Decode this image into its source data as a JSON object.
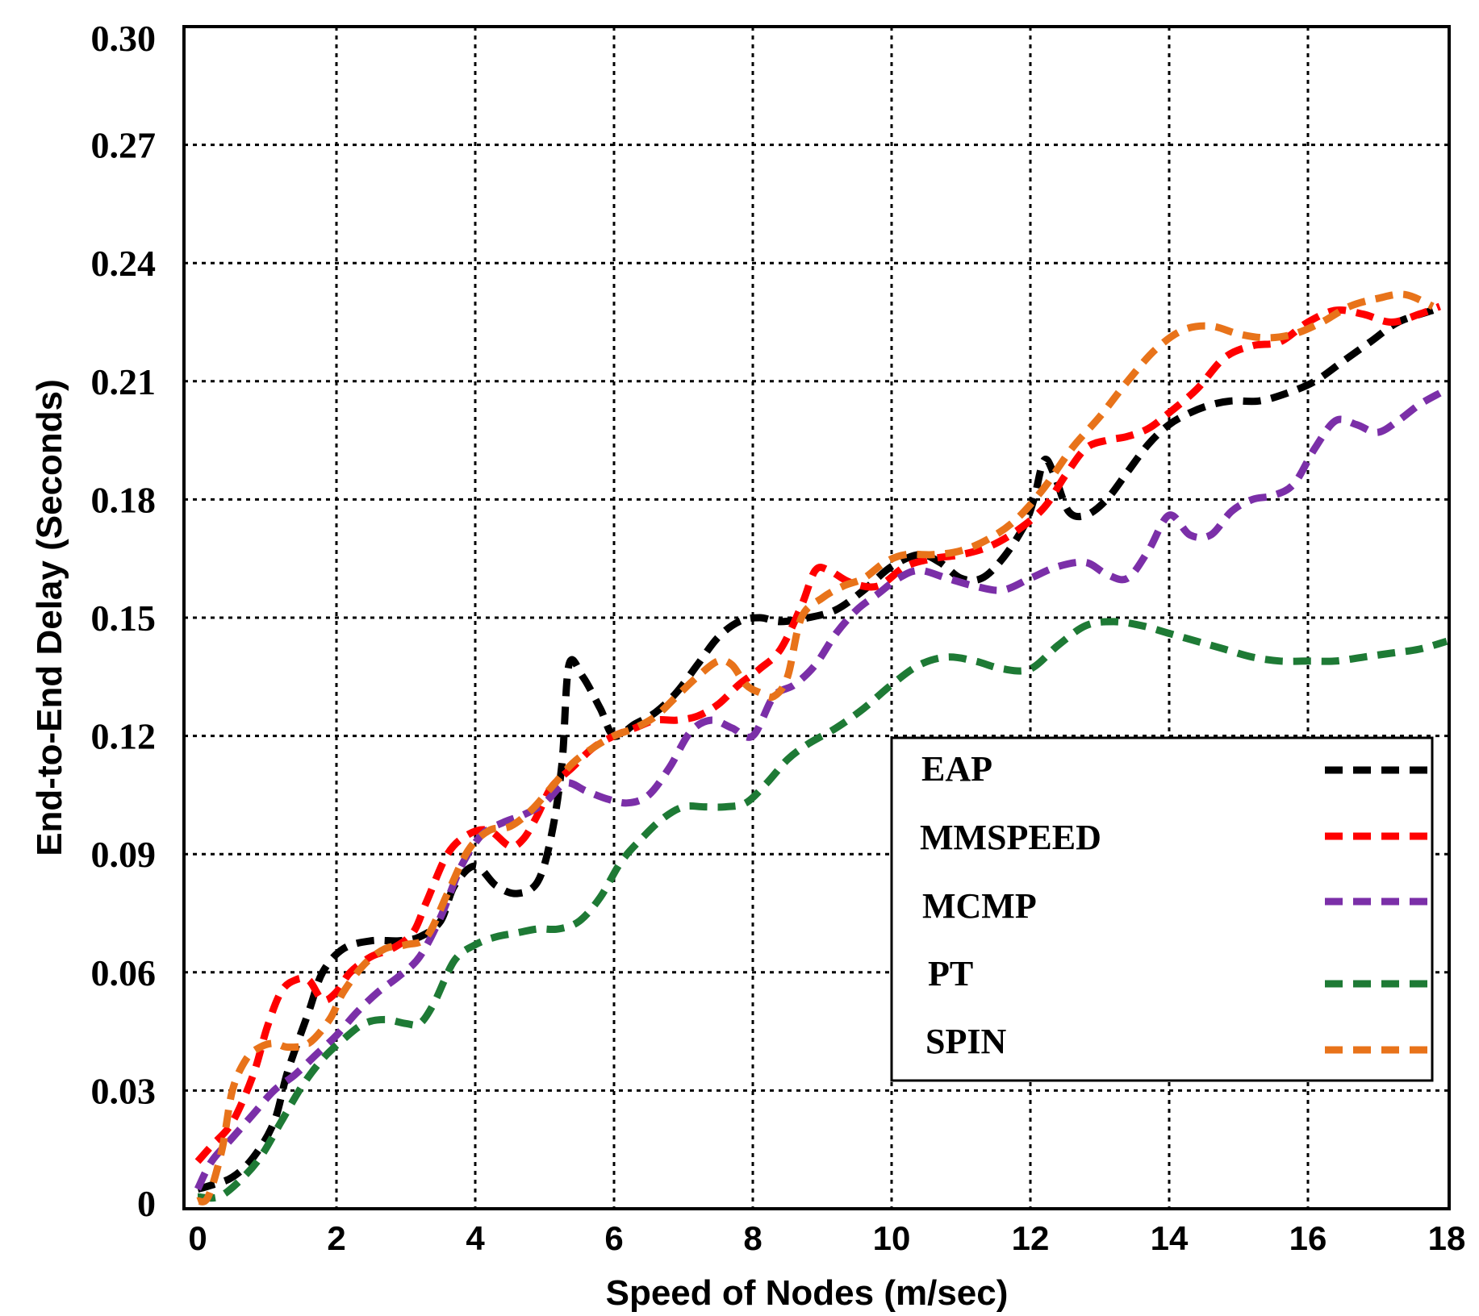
{
  "chart_data": {
    "type": "line",
    "title": "",
    "xlabel": "Speed of Nodes (m/sec)",
    "ylabel": "End-to-End Delay (Seconds)",
    "xlim": [
      0,
      18
    ],
    "ylim": [
      0,
      0.3
    ],
    "xticks": [
      0,
      2,
      4,
      6,
      8,
      10,
      12,
      14,
      16,
      18
    ],
    "xtick_labels": [
      "0",
      "2",
      "4",
      "6",
      "8",
      "10",
      "12",
      "14",
      "16",
      "18"
    ],
    "yticks": [
      0,
      0.03,
      0.06,
      0.09,
      0.12,
      0.15,
      0.18,
      0.21,
      0.24,
      0.27,
      0.3
    ],
    "ytick_labels": [
      "0",
      "0.03",
      "0.06",
      "0.09",
      "0.12",
      "0.15",
      "0.18",
      "0.21",
      "0.24",
      "0.27",
      "0.30"
    ],
    "grid": true,
    "legend_position": "lower-right",
    "series": [
      {
        "name": "EAP",
        "color": "#000000",
        "x": [
          0,
          0.2,
          0.5,
          0.8,
          1.1,
          1.3,
          1.6,
          1.8,
          2.1,
          2.5,
          2.9,
          3.2,
          3.5,
          3.7,
          4.0,
          4.3,
          4.6,
          4.9,
          5.1,
          5.25,
          5.35,
          5.55,
          5.8,
          6.0,
          6.3,
          6.6,
          6.9,
          7.2,
          7.5,
          7.8,
          8.1,
          8.4,
          8.8,
          9.2,
          9.6,
          10.0,
          10.4,
          10.7,
          11.0,
          11.3,
          11.6,
          11.9,
          12.05,
          12.2,
          12.35,
          12.55,
          12.8,
          13.1,
          13.4,
          13.7,
          14.0,
          14.3,
          14.6,
          14.9,
          15.3,
          15.7,
          16.1,
          16.5,
          16.9,
          17.3,
          17.8
        ],
        "y": [
          0.005,
          0.006,
          0.008,
          0.013,
          0.022,
          0.035,
          0.05,
          0.06,
          0.066,
          0.068,
          0.068,
          0.069,
          0.073,
          0.082,
          0.087,
          0.082,
          0.08,
          0.083,
          0.095,
          0.113,
          0.138,
          0.135,
          0.127,
          0.12,
          0.123,
          0.126,
          0.131,
          0.138,
          0.145,
          0.149,
          0.15,
          0.149,
          0.15,
          0.152,
          0.157,
          0.163,
          0.166,
          0.164,
          0.16,
          0.16,
          0.165,
          0.173,
          0.18,
          0.19,
          0.186,
          0.177,
          0.176,
          0.18,
          0.187,
          0.194,
          0.199,
          0.202,
          0.204,
          0.205,
          0.205,
          0.207,
          0.21,
          0.215,
          0.22,
          0.225,
          0.228
        ]
      },
      {
        "name": "MMSPEED",
        "color": "#ff0000",
        "x": [
          0,
          0.2,
          0.5,
          0.8,
          1.0,
          1.2,
          1.4,
          1.6,
          1.8,
          2.0,
          2.2,
          2.5,
          2.8,
          3.1,
          3.3,
          3.6,
          3.9,
          4.2,
          4.5,
          4.7,
          4.9,
          5.1,
          5.4,
          5.7,
          6.0,
          6.3,
          6.6,
          6.9,
          7.2,
          7.5,
          7.8,
          8.1,
          8.4,
          8.7,
          8.9,
          9.1,
          9.4,
          9.8,
          10.2,
          10.6,
          11.0,
          11.4,
          11.8,
          12.2,
          12.5,
          12.8,
          13.1,
          13.4,
          13.7,
          14.0,
          14.4,
          14.8,
          15.2,
          15.6,
          16.0,
          16.4,
          16.8,
          17.2,
          17.6,
          17.9
        ],
        "y": [
          0.012,
          0.016,
          0.022,
          0.034,
          0.046,
          0.055,
          0.058,
          0.058,
          0.053,
          0.055,
          0.06,
          0.064,
          0.066,
          0.07,
          0.078,
          0.09,
          0.095,
          0.096,
          0.092,
          0.094,
          0.1,
          0.107,
          0.112,
          0.117,
          0.12,
          0.122,
          0.124,
          0.124,
          0.125,
          0.128,
          0.133,
          0.137,
          0.142,
          0.153,
          0.162,
          0.162,
          0.159,
          0.158,
          0.163,
          0.165,
          0.166,
          0.168,
          0.172,
          0.178,
          0.186,
          0.193,
          0.195,
          0.196,
          0.198,
          0.202,
          0.208,
          0.216,
          0.219,
          0.22,
          0.225,
          0.228,
          0.227,
          0.225,
          0.227,
          0.229
        ]
      },
      {
        "name": "MCMP",
        "color": "#7b2fa8",
        "x": [
          0,
          0.2,
          0.5,
          0.8,
          1.1,
          1.4,
          1.7,
          2.0,
          2.3,
          2.6,
          2.9,
          3.2,
          3.5,
          3.8,
          4.1,
          4.4,
          4.7,
          5.0,
          5.3,
          5.6,
          5.9,
          6.2,
          6.5,
          6.8,
          7.1,
          7.4,
          7.7,
          8.0,
          8.3,
          8.6,
          8.9,
          9.2,
          9.5,
          9.8,
          10.1,
          10.4,
          10.8,
          11.2,
          11.6,
          12.0,
          12.4,
          12.8,
          13.1,
          13.4,
          13.7,
          14.0,
          14.3,
          14.6,
          14.9,
          15.2,
          15.5,
          15.8,
          16.1,
          16.4,
          16.7,
          17.0,
          17.3,
          17.6,
          17.9
        ],
        "y": [
          0.005,
          0.012,
          0.018,
          0.024,
          0.03,
          0.034,
          0.039,
          0.044,
          0.05,
          0.055,
          0.059,
          0.064,
          0.074,
          0.087,
          0.095,
          0.098,
          0.1,
          0.103,
          0.108,
          0.106,
          0.104,
          0.103,
          0.105,
          0.112,
          0.121,
          0.124,
          0.122,
          0.12,
          0.13,
          0.133,
          0.138,
          0.146,
          0.152,
          0.156,
          0.16,
          0.162,
          0.16,
          0.158,
          0.157,
          0.16,
          0.163,
          0.164,
          0.161,
          0.16,
          0.167,
          0.176,
          0.171,
          0.171,
          0.177,
          0.18,
          0.181,
          0.184,
          0.193,
          0.2,
          0.199,
          0.197,
          0.2,
          0.204,
          0.207
        ]
      },
      {
        "name": "PT",
        "color": "#1e7a35",
        "x": [
          0,
          0.3,
          0.6,
          0.9,
          1.2,
          1.5,
          1.8,
          2.1,
          2.4,
          2.7,
          3.0,
          3.2,
          3.4,
          3.7,
          4.0,
          4.3,
          4.6,
          4.9,
          5.2,
          5.5,
          5.8,
          6.1,
          6.4,
          6.7,
          7.0,
          7.3,
          7.6,
          7.9,
          8.2,
          8.5,
          8.8,
          9.2,
          9.6,
          10.0,
          10.4,
          10.8,
          11.2,
          11.6,
          12.0,
          12.4,
          12.8,
          13.2,
          13.6,
          14.0,
          14.4,
          14.8,
          15.2,
          15.6,
          16.0,
          16.4,
          16.8,
          17.2,
          17.6,
          18.0
        ],
        "y": [
          0.003,
          0.003,
          0.007,
          0.013,
          0.022,
          0.031,
          0.038,
          0.043,
          0.047,
          0.048,
          0.047,
          0.047,
          0.052,
          0.063,
          0.067,
          0.069,
          0.07,
          0.071,
          0.071,
          0.073,
          0.079,
          0.088,
          0.094,
          0.099,
          0.102,
          0.102,
          0.102,
          0.103,
          0.108,
          0.114,
          0.118,
          0.122,
          0.127,
          0.133,
          0.138,
          0.14,
          0.139,
          0.137,
          0.137,
          0.143,
          0.148,
          0.149,
          0.148,
          0.146,
          0.144,
          0.142,
          0.14,
          0.139,
          0.139,
          0.139,
          0.14,
          0.141,
          0.142,
          0.144
        ]
      },
      {
        "name": "SPIN",
        "color": "#e8731a",
        "x": [
          0,
          0.15,
          0.35,
          0.5,
          0.7,
          0.9,
          1.1,
          1.3,
          1.6,
          1.9,
          2.1,
          2.4,
          2.7,
          3.0,
          3.3,
          3.6,
          3.9,
          4.2,
          4.5,
          4.8,
          5.1,
          5.4,
          5.7,
          6.0,
          6.3,
          6.6,
          6.9,
          7.2,
          7.5,
          7.7,
          7.9,
          8.1,
          8.3,
          8.5,
          8.7,
          9.0,
          9.3,
          9.6,
          9.9,
          10.2,
          10.6,
          11.0,
          11.4,
          11.8,
          12.2,
          12.6,
          13.0,
          13.4,
          13.8,
          14.2,
          14.6,
          15.0,
          15.4,
          15.8,
          16.2,
          16.6,
          17.0,
          17.4,
          17.8
        ],
        "y": [
          0.002,
          0.003,
          0.015,
          0.03,
          0.038,
          0.041,
          0.042,
          0.041,
          0.042,
          0.048,
          0.055,
          0.062,
          0.066,
          0.067,
          0.069,
          0.08,
          0.091,
          0.096,
          0.097,
          0.101,
          0.107,
          0.113,
          0.117,
          0.12,
          0.122,
          0.125,
          0.13,
          0.135,
          0.139,
          0.138,
          0.133,
          0.131,
          0.13,
          0.135,
          0.15,
          0.155,
          0.158,
          0.16,
          0.164,
          0.166,
          0.166,
          0.167,
          0.17,
          0.175,
          0.183,
          0.193,
          0.201,
          0.21,
          0.218,
          0.223,
          0.224,
          0.222,
          0.221,
          0.222,
          0.225,
          0.229,
          0.231,
          0.232,
          0.229
        ]
      }
    ]
  }
}
